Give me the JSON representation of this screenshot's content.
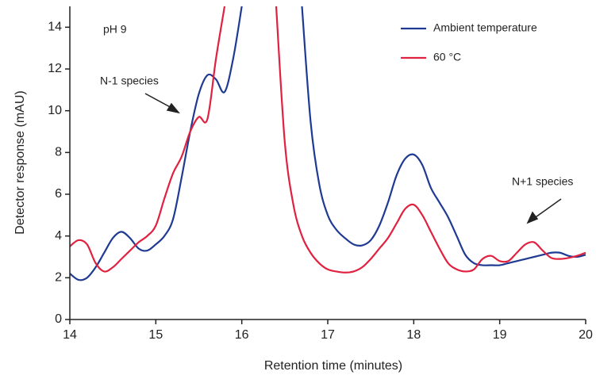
{
  "chart_data": {
    "type": "line",
    "xlabel": "Retention time (minutes)",
    "ylabel": "Detector response (mAU)",
    "annotations": [
      "pH 9",
      "N-1 species",
      "N+1 species"
    ],
    "xlim": [
      14,
      20
    ],
    "xticks": [
      14,
      15,
      16,
      17,
      18,
      19,
      20
    ],
    "ylim": [
      0,
      15
    ],
    "yticks": [
      0,
      2,
      4,
      6,
      8,
      10,
      12,
      14
    ],
    "x": [
      14.0,
      14.1,
      14.2,
      14.3,
      14.4,
      14.5,
      14.6,
      14.7,
      14.8,
      14.9,
      15.0,
      15.1,
      15.2,
      15.3,
      15.4,
      15.5,
      15.6,
      15.7,
      15.8,
      15.9,
      16.0,
      16.1,
      16.2,
      16.3,
      16.4,
      16.5,
      16.6,
      16.7,
      16.8,
      16.9,
      17.0,
      17.1,
      17.2,
      17.3,
      17.4,
      17.5,
      17.6,
      17.7,
      17.8,
      17.9,
      18.0,
      18.1,
      18.2,
      18.3,
      18.4,
      18.5,
      18.6,
      18.7,
      18.8,
      18.9,
      19.0,
      19.1,
      19.2,
      19.3,
      19.4,
      19.5,
      19.6,
      19.7,
      19.8,
      19.9,
      20.0
    ],
    "series": [
      {
        "name": "Ambient temperature",
        "color": "#1f3a93",
        "values": [
          2.2,
          1.9,
          2.0,
          2.5,
          3.2,
          3.9,
          4.2,
          3.9,
          3.4,
          3.3,
          3.6,
          4.0,
          4.8,
          6.8,
          9.0,
          10.8,
          11.7,
          11.5,
          10.9,
          12.5,
          15,
          null,
          null,
          null,
          null,
          null,
          null,
          15,
          9.5,
          6.5,
          5.0,
          4.3,
          3.9,
          3.6,
          3.55,
          3.8,
          4.5,
          5.6,
          6.9,
          7.7,
          7.9,
          7.4,
          6.3,
          5.6,
          4.9,
          4.0,
          3.1,
          2.7,
          2.6,
          2.6,
          2.6,
          2.7,
          2.8,
          2.9,
          3.0,
          3.1,
          3.2,
          3.2,
          3.05,
          3.0,
          3.1
        ]
      },
      {
        "name": "60 °C",
        "color": "#e0213f",
        "values": [
          3.5,
          3.8,
          3.6,
          2.7,
          2.3,
          2.5,
          2.9,
          3.3,
          3.7,
          4.0,
          4.5,
          5.8,
          7.0,
          7.8,
          9.0,
          9.7,
          9.6,
          12.5,
          15,
          null,
          null,
          null,
          null,
          null,
          15,
          8.5,
          5.5,
          4.0,
          3.2,
          2.7,
          2.4,
          2.3,
          2.25,
          2.3,
          2.5,
          2.9,
          3.4,
          3.9,
          4.6,
          5.3,
          5.5,
          5.0,
          4.2,
          3.4,
          2.7,
          2.4,
          2.3,
          2.4,
          2.9,
          3.05,
          2.8,
          2.8,
          3.2,
          3.6,
          3.7,
          3.3,
          2.95,
          2.9,
          2.95,
          3.05,
          3.2
        ]
      }
    ]
  }
}
